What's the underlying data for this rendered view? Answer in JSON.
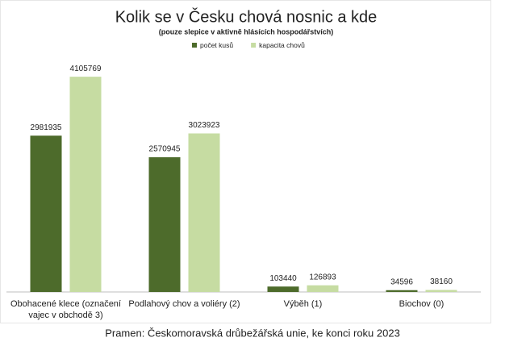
{
  "chart_data": {
    "type": "bar",
    "title": "Kolik se v Česku chová nosnic a kde",
    "subtitle": "(pouze slepice v aktivně hlásících hospodářstvích)",
    "categories": [
      "Obohacené klece (označení vajec v obchodě 3)",
      "Podlahový chov a voliéry (2)",
      "Výběh (1)",
      "Biochov (0)"
    ],
    "series": [
      {
        "name": "počet kusů",
        "color": "#4d6b2b",
        "values": [
          2981935,
          2570945,
          103440,
          34596
        ]
      },
      {
        "name": "kapacita chovů",
        "color": "#c6dca2",
        "values": [
          4105769,
          3023923,
          126893,
          38160
        ]
      }
    ],
    "ylim": [
      0,
      4400000
    ],
    "legend": "top",
    "source": "Pramen: Českomoravská drůbežářská unie, ke konci roku 2023"
  }
}
